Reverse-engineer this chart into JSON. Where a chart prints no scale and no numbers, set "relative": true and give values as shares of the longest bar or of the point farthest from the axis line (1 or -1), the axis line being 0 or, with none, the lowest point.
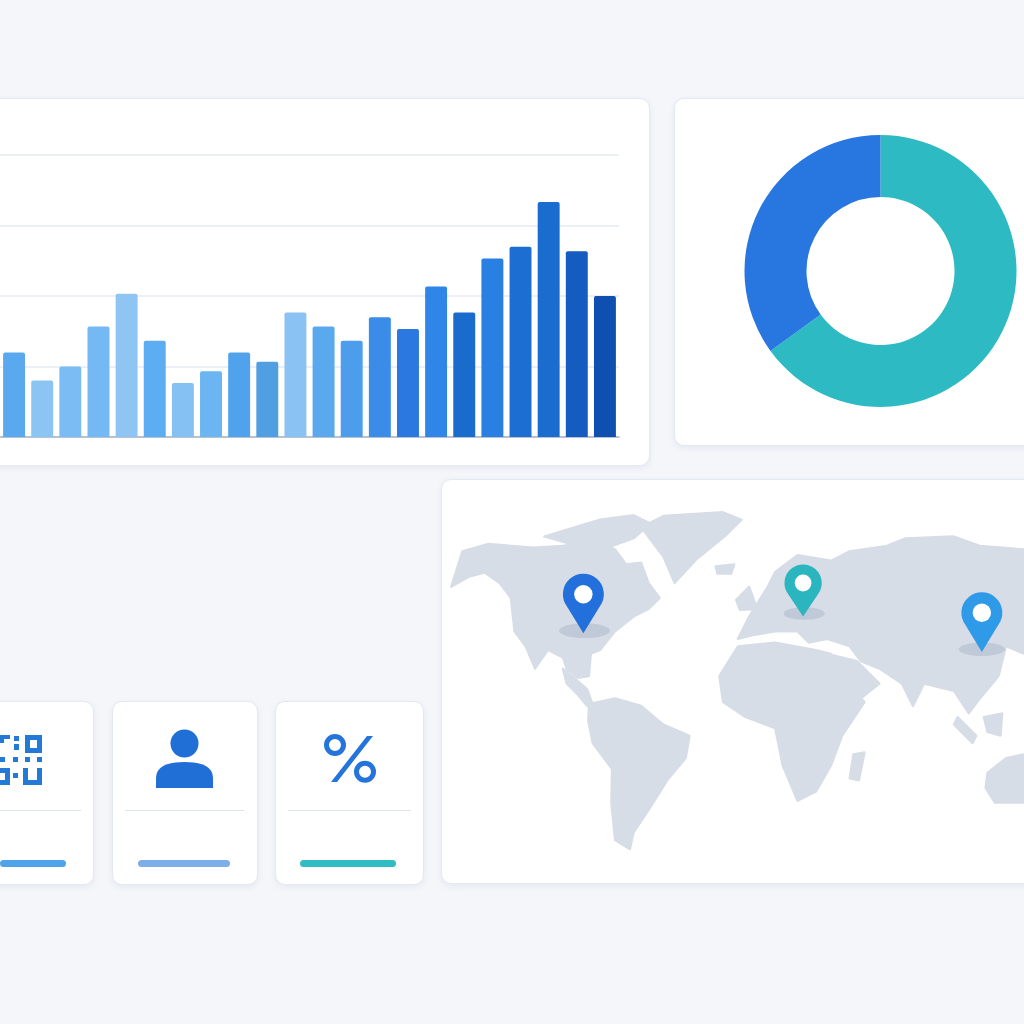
{
  "chart_data": [
    {
      "type": "bar",
      "relative": true,
      "grid": "y",
      "categories": [
        null,
        null,
        null,
        null,
        null,
        null,
        null,
        null,
        null,
        null,
        null,
        null,
        null,
        null,
        null,
        null,
        null,
        null,
        null,
        null,
        null,
        null
      ],
      "values": [
        0.36,
        0.24,
        0.3,
        0.47,
        0.61,
        0.41,
        0.23,
        0.28,
        0.36,
        0.32,
        0.53,
        0.47,
        0.41,
        0.51,
        0.46,
        0.64,
        0.53,
        0.76,
        0.81,
        1,
        0.79,
        0.6
      ],
      "colors": [
        "#5aa9ee",
        "#8cc4f4",
        "#7bbcf4",
        "#74b8f4",
        "#8ec5f3",
        "#5dadf2",
        "#86c1f3",
        "#6cb5f3",
        "#50a2ec",
        "#519fe3",
        "#8ac3f3",
        "#5aa9ef",
        "#4c9eec",
        "#3a8ce8",
        "#2a78e0",
        "#2f86e8",
        "#1a6ccc",
        "#2a7fe3",
        "#1c6ed2",
        "#1b6ccf",
        "#145cbf",
        "#0f4fb0"
      ]
    },
    {
      "type": "donut",
      "categories": [
        null,
        null
      ],
      "values": [
        65,
        35
      ],
      "colors": [
        "#2dbac2",
        "#2877e0"
      ]
    }
  ]
}
